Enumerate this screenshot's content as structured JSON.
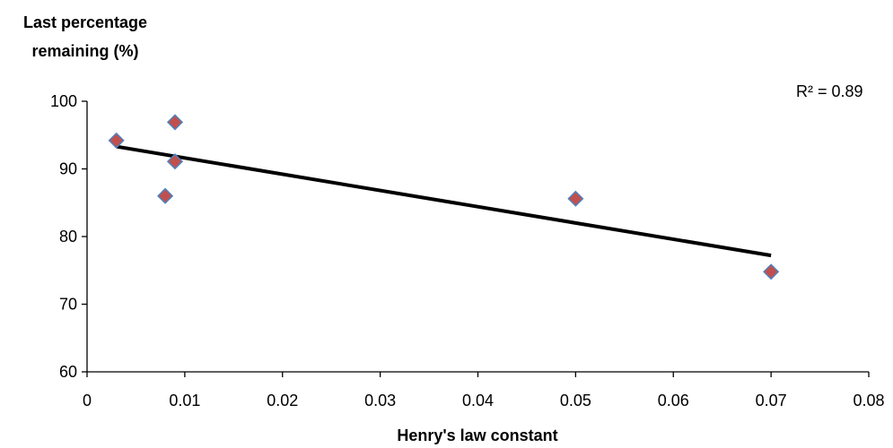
{
  "chart_data": {
    "type": "scatter",
    "ylabel_lines": [
      "Last percentage",
      "remaining (%)"
    ],
    "xlabel": "Henry's law constant",
    "xlim": [
      0,
      0.08
    ],
    "ylim": [
      60,
      100
    ],
    "xticks": [
      0,
      0.01,
      0.02,
      0.03,
      0.04,
      0.05,
      0.06,
      0.07,
      0.08
    ],
    "xtick_labels": [
      "0",
      "0.01",
      "0.02",
      "0.03",
      "0.04",
      "0.05",
      "0.06",
      "0.07",
      "0.08"
    ],
    "yticks": [
      60,
      70,
      80,
      90,
      100
    ],
    "ytick_labels": [
      "60",
      "70",
      "80",
      "90",
      "100"
    ],
    "grid": false,
    "points": [
      {
        "x": 0.003,
        "y": 94.2
      },
      {
        "x": 0.008,
        "y": 86.0
      },
      {
        "x": 0.009,
        "y": 96.9
      },
      {
        "x": 0.009,
        "y": 91.1
      },
      {
        "x": 0.05,
        "y": 85.6
      },
      {
        "x": 0.07,
        "y": 74.8
      }
    ],
    "trendline": {
      "x": [
        0.003,
        0.07
      ],
      "y": [
        93.3,
        77.2
      ]
    },
    "annotation": "R² = 0.89",
    "colors": {
      "marker_fill": "#c0504d",
      "marker_stroke": "#4f81bd",
      "trendline": "#000000",
      "axis": "#000000"
    }
  }
}
